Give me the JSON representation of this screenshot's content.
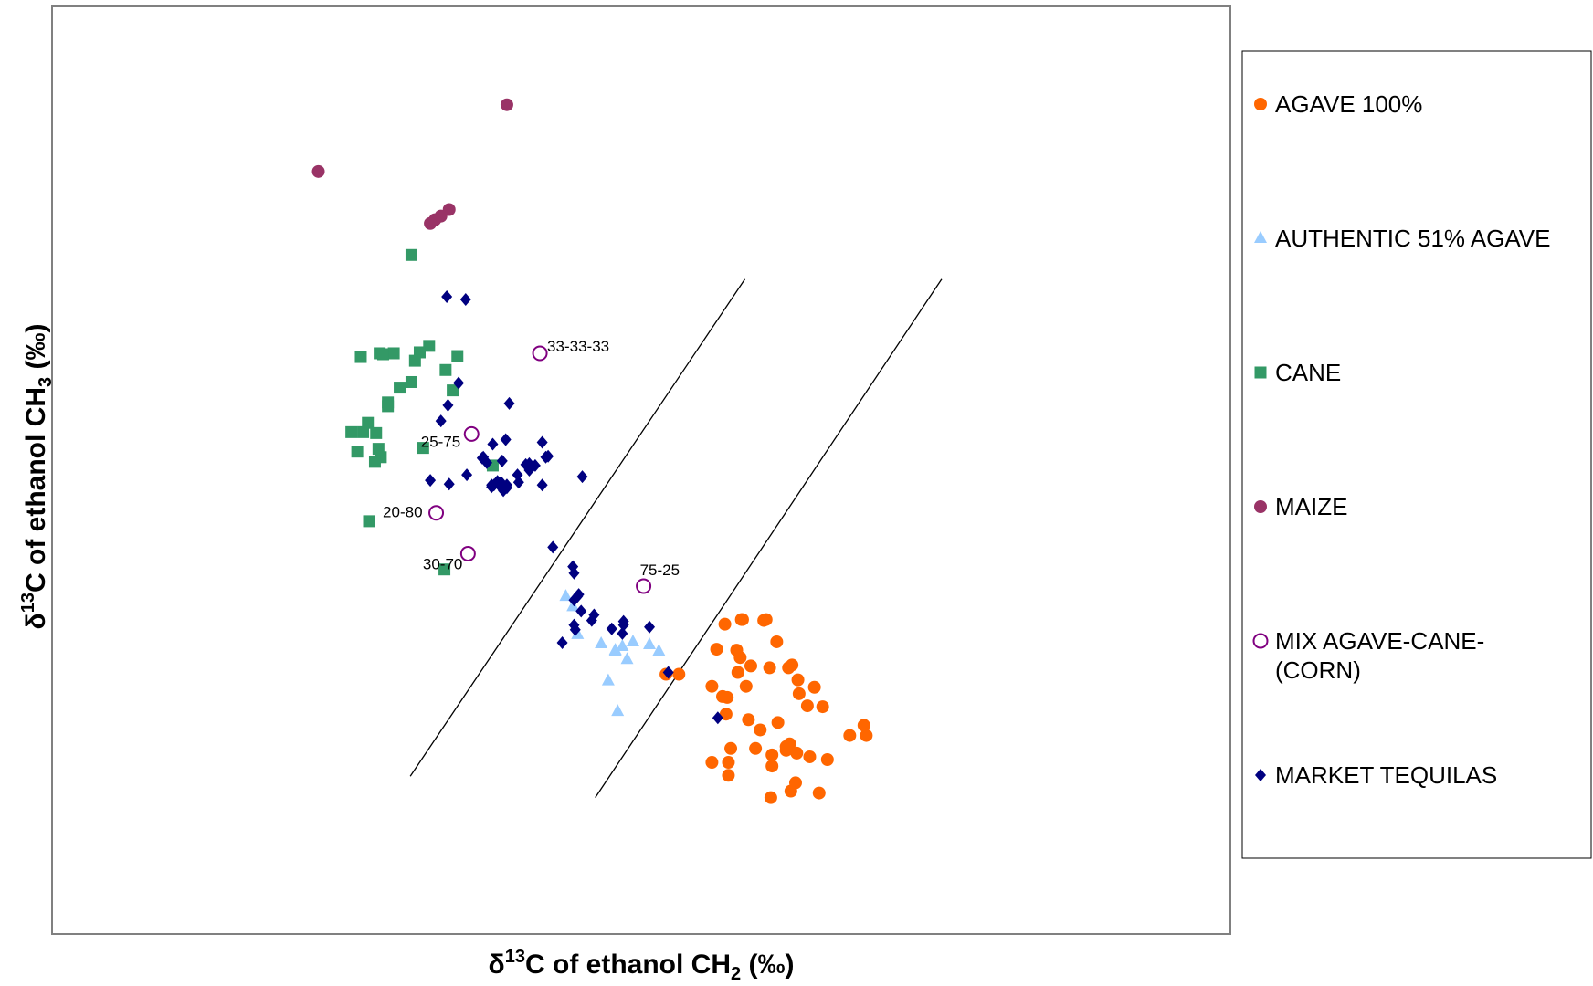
{
  "chart_data": {
    "type": "scatter",
    "title": "",
    "xlabel": {
      "prefix": "δ",
      "sup": "13",
      "main": "C of ethanol CH",
      "sub": "2",
      "suffix": " (‰)"
    },
    "ylabel": {
      "prefix": "δ",
      "sup": "13",
      "main": "C of ethanol CH",
      "sub": "3",
      "suffix": " (‰)"
    },
    "xlim": [
      0,
      100
    ],
    "ylim": [
      0,
      100
    ],
    "grid": false,
    "axis_ticks": false,
    "legend_position": "right",
    "series": [
      {
        "name": "AGAVE 100%",
        "marker": "circle",
        "color": "#FF6600",
        "points": [
          [
            57.1,
            33.4
          ],
          [
            58.5,
            33.9
          ],
          [
            58.6,
            33.9
          ],
          [
            60.4,
            33.8
          ],
          [
            60.6,
            33.9
          ],
          [
            62.5,
            28.7
          ],
          [
            61.5,
            31.5
          ],
          [
            59.3,
            28.9
          ],
          [
            60.9,
            28.7
          ],
          [
            58.4,
            29.8
          ],
          [
            62.8,
            29.0
          ],
          [
            63.4,
            25.9
          ],
          [
            58.2,
            28.2
          ],
          [
            63.3,
            27.4
          ],
          [
            64.7,
            26.6
          ],
          [
            64.1,
            24.6
          ],
          [
            61.6,
            22.8
          ],
          [
            62.6,
            20.5
          ],
          [
            65.4,
            24.5
          ],
          [
            56.0,
            26.7
          ],
          [
            56.4,
            30.7
          ],
          [
            58.1,
            30.6
          ],
          [
            57.2,
            23.7
          ],
          [
            59.1,
            23.1
          ],
          [
            61.1,
            19.3
          ],
          [
            62.3,
            19.8
          ],
          [
            63.2,
            19.5
          ],
          [
            61.1,
            18.1
          ],
          [
            57.6,
            20.0
          ],
          [
            62.3,
            20.2
          ],
          [
            65.8,
            18.8
          ],
          [
            58.9,
            26.7
          ],
          [
            59.7,
            20.0
          ],
          [
            56.0,
            18.5
          ],
          [
            57.4,
            18.5
          ],
          [
            64.3,
            19.1
          ],
          [
            57.4,
            17.1
          ],
          [
            63.1,
            16.3
          ],
          [
            61.0,
            14.7
          ],
          [
            65.1,
            15.2
          ],
          [
            62.7,
            15.4
          ],
          [
            60.1,
            22.0
          ],
          [
            57.3,
            25.5
          ],
          [
            56.9,
            25.6
          ],
          [
            67.7,
            21.4
          ],
          [
            69.1,
            21.4
          ],
          [
            52.1,
            28.0
          ],
          [
            53.2,
            28.0
          ],
          [
            68.9,
            22.5
          ]
        ]
      },
      {
        "name": "AUTHENTIC 51% AGAVE",
        "marker": "triangle",
        "color": "#99CCFF",
        "points": [
          [
            43.6,
            36.4
          ],
          [
            44.6,
            32.3
          ],
          [
            44.2,
            35.3
          ],
          [
            46.6,
            31.3
          ],
          [
            49.3,
            31.5
          ],
          [
            47.8,
            30.6
          ],
          [
            50.7,
            31.2
          ],
          [
            47.8,
            30.5
          ],
          [
            48.4,
            31.0
          ],
          [
            51.5,
            30.5
          ],
          [
            48.8,
            29.6
          ],
          [
            47.2,
            27.3
          ],
          [
            48.0,
            24.0
          ]
        ]
      },
      {
        "name": "CANE",
        "marker": "square",
        "color": "#339966",
        "points": [
          [
            30.5,
            73.2
          ],
          [
            29.0,
            62.6
          ],
          [
            26.2,
            62.2
          ],
          [
            32.0,
            63.4
          ],
          [
            27.8,
            62.6
          ],
          [
            28.1,
            62.5
          ],
          [
            29.5,
            58.9
          ],
          [
            31.2,
            62.7
          ],
          [
            34.4,
            62.3
          ],
          [
            28.5,
            57.3
          ],
          [
            33.4,
            60.8
          ],
          [
            34.0,
            58.6
          ],
          [
            28.5,
            56.9
          ],
          [
            26.8,
            55.1
          ],
          [
            26.4,
            54.1
          ],
          [
            27.5,
            54.0
          ],
          [
            25.4,
            54.1
          ],
          [
            30.5,
            59.5
          ],
          [
            30.8,
            61.8
          ],
          [
            31.5,
            52.4
          ],
          [
            25.9,
            52.0
          ],
          [
            27.9,
            51.4
          ],
          [
            27.7,
            52.3
          ],
          [
            27.4,
            50.9
          ],
          [
            37.4,
            50.5
          ],
          [
            33.3,
            39.3
          ],
          [
            26.9,
            44.5
          ]
        ]
      },
      {
        "name": "MAIZE",
        "marker": "circle",
        "color": "#993366",
        "points": [
          [
            22.6,
            82.2
          ],
          [
            38.6,
            89.4
          ],
          [
            33.7,
            78.1
          ],
          [
            33.0,
            77.4
          ],
          [
            32.5,
            77.0
          ],
          [
            32.1,
            76.6
          ]
        ]
      },
      {
        "name": "MIX AGAVE-CANE-(CORN)",
        "marker": "open-circle",
        "color": "#800080",
        "points": [
          [
            41.4,
            62.6,
            "33-33-33"
          ],
          [
            35.6,
            53.9,
            "25-75"
          ],
          [
            32.6,
            45.4,
            "20-80"
          ],
          [
            35.3,
            41.0,
            "30-70"
          ],
          [
            50.2,
            37.5,
            "75-25"
          ]
        ]
      },
      {
        "name": "MARKET TEQUILAS",
        "marker": "diamond",
        "color": "#000080",
        "points": [
          [
            33.5,
            68.7
          ],
          [
            35.1,
            68.4
          ],
          [
            36.9,
            50.8
          ],
          [
            35.2,
            49.5
          ],
          [
            36.5,
            51.3
          ],
          [
            37.3,
            48.4
          ],
          [
            37.5,
            48.4
          ],
          [
            37.8,
            48.8
          ],
          [
            39.6,
            48.7
          ],
          [
            41.6,
            53.0
          ],
          [
            40.2,
            50.6
          ],
          [
            40.5,
            50.7
          ],
          [
            42.1,
            51.5
          ],
          [
            45.0,
            49.3
          ],
          [
            41.9,
            51.4
          ],
          [
            38.2,
            51.0
          ],
          [
            38.6,
            48.4
          ],
          [
            37.3,
            48.2
          ],
          [
            38.0,
            48.3
          ],
          [
            38.3,
            47.8
          ],
          [
            38.1,
            48.7
          ],
          [
            39.5,
            49.5
          ],
          [
            40.5,
            50.0
          ],
          [
            38.8,
            57.2
          ],
          [
            33.6,
            57.0
          ],
          [
            34.5,
            59.4
          ],
          [
            38.6,
            48.1
          ],
          [
            36.6,
            51.4
          ],
          [
            37.4,
            52.8
          ],
          [
            38.5,
            53.3
          ],
          [
            33.7,
            48.5
          ],
          [
            32.1,
            48.9
          ],
          [
            33.0,
            55.3
          ],
          [
            43.3,
            31.4
          ],
          [
            44.3,
            33.3
          ],
          [
            45.8,
            33.8
          ],
          [
            46.0,
            34.4
          ],
          [
            44.6,
            36.4
          ],
          [
            44.7,
            36.6
          ],
          [
            44.3,
            36.0
          ],
          [
            44.4,
            32.8
          ],
          [
            44.9,
            34.8
          ],
          [
            48.5,
            33.7
          ],
          [
            48.5,
            33.3
          ],
          [
            48.4,
            32.4
          ],
          [
            50.7,
            33.1
          ],
          [
            47.5,
            32.9
          ],
          [
            42.5,
            41.7
          ],
          [
            41.6,
            48.4
          ],
          [
            41.0,
            50.5
          ],
          [
            52.3,
            28.2
          ],
          [
            56.5,
            23.3
          ],
          [
            44.2,
            39.6
          ],
          [
            44.3,
            38.9
          ]
        ]
      }
    ],
    "separator_lines": [
      {
        "x1": 30.4,
        "y1": 17.0,
        "x2": 58.8,
        "y2": 70.6
      },
      {
        "x1": 46.1,
        "y1": 14.7,
        "x2": 75.5,
        "y2": 70.6
      }
    ]
  },
  "legend": {
    "items": [
      {
        "label_lines": [
          "AGAVE 100%"
        ],
        "marker": "circle",
        "color": "#FF6600"
      },
      {
        "label_lines": [
          "AUTHENTIC 51% AGAVE"
        ],
        "marker": "triangle",
        "color": "#99CCFF"
      },
      {
        "label_lines": [
          "CANE"
        ],
        "marker": "square",
        "color": "#339966"
      },
      {
        "label_lines": [
          "MAIZE"
        ],
        "marker": "circle",
        "color": "#993366"
      },
      {
        "label_lines": [
          "MIX AGAVE-CANE-",
          "(CORN)"
        ],
        "marker": "open-circle",
        "color": "#800080"
      },
      {
        "label_lines": [
          "MARKET TEQUILAS"
        ],
        "marker": "diamond",
        "color": "#000080"
      }
    ]
  }
}
